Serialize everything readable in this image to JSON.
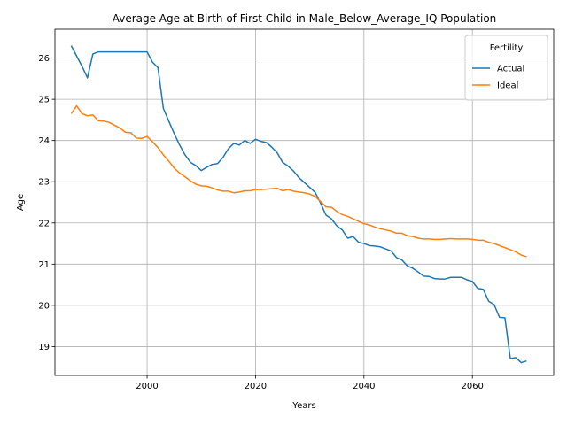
{
  "chart_data": {
    "type": "line",
    "title": "Average Age at Birth of First Child in Male_Below_Average_IQ Population",
    "xlabel": "Years",
    "ylabel": "Age",
    "xlim": [
      1983,
      2075
    ],
    "ylim": [
      18.3,
      26.7
    ],
    "xticks": [
      2000,
      2020,
      2040,
      2060
    ],
    "yticks": [
      19,
      20,
      21,
      22,
      23,
      24,
      25,
      26
    ],
    "grid": true,
    "legend": {
      "title": "Fertility",
      "placement": "top-right"
    },
    "x": [
      1986,
      1987,
      1988,
      1989,
      1990,
      1991,
      1992,
      1993,
      1994,
      1995,
      1996,
      1997,
      1998,
      1999,
      2000,
      2001,
      2002,
      2003,
      2004,
      2005,
      2006,
      2007,
      2008,
      2009,
      2010,
      2011,
      2012,
      2013,
      2014,
      2015,
      2016,
      2017,
      2018,
      2019,
      2020,
      2021,
      2022,
      2023,
      2024,
      2025,
      2026,
      2027,
      2028,
      2029,
      2030,
      2031,
      2032,
      2033,
      2034,
      2035,
      2036,
      2037,
      2038,
      2039,
      2040,
      2041,
      2042,
      2043,
      2044,
      2045,
      2046,
      2047,
      2048,
      2049,
      2050,
      2051,
      2052,
      2053,
      2054,
      2055,
      2056,
      2057,
      2058,
      2059,
      2060,
      2061,
      2062,
      2063,
      2064,
      2065,
      2066,
      2067,
      2068,
      2069,
      2070
    ],
    "series": [
      {
        "name": "Actual",
        "color": "#1f77b4",
        "values": [
          26.3,
          26.05,
          25.8,
          25.52,
          26.1,
          26.15,
          26.15,
          26.15,
          26.15,
          26.15,
          26.15,
          26.15,
          26.15,
          26.15,
          26.15,
          25.9,
          25.77,
          24.78,
          24.47,
          24.17,
          23.89,
          23.65,
          23.47,
          23.39,
          23.27,
          23.35,
          23.42,
          23.44,
          23.59,
          23.8,
          23.93,
          23.89,
          24.0,
          23.93,
          24.03,
          23.98,
          23.95,
          23.84,
          23.7,
          23.47,
          23.38,
          23.26,
          23.1,
          22.98,
          22.86,
          22.74,
          22.48,
          22.19,
          22.1,
          21.93,
          21.83,
          21.63,
          21.67,
          21.53,
          21.5,
          21.45,
          21.44,
          21.42,
          21.37,
          21.32,
          21.16,
          21.1,
          20.96,
          20.9,
          20.81,
          20.71,
          20.7,
          20.65,
          20.64,
          20.64,
          20.68,
          20.68,
          20.68,
          20.62,
          20.58,
          20.41,
          20.39,
          20.1,
          20.02,
          19.71,
          19.7,
          18.71,
          18.73,
          18.61,
          18.65
        ]
      },
      {
        "name": "Ideal",
        "color": "#ff7f0e",
        "values": [
          24.65,
          24.84,
          24.65,
          24.6,
          24.62,
          24.48,
          24.47,
          24.44,
          24.37,
          24.3,
          24.2,
          24.19,
          24.06,
          24.05,
          24.1,
          23.97,
          23.83,
          23.65,
          23.5,
          23.33,
          23.21,
          23.12,
          23.02,
          22.94,
          22.9,
          22.89,
          22.85,
          22.8,
          22.77,
          22.77,
          22.73,
          22.75,
          22.78,
          22.78,
          22.81,
          22.81,
          22.82,
          22.83,
          22.84,
          22.78,
          22.81,
          22.77,
          22.75,
          22.73,
          22.7,
          22.64,
          22.52,
          22.39,
          22.38,
          22.28,
          22.2,
          22.16,
          22.1,
          22.04,
          21.98,
          21.95,
          21.9,
          21.86,
          21.83,
          21.8,
          21.75,
          21.75,
          21.69,
          21.67,
          21.63,
          21.61,
          21.61,
          21.6,
          21.6,
          21.61,
          21.62,
          21.61,
          21.61,
          21.61,
          21.6,
          21.58,
          21.58,
          21.53,
          21.5,
          21.45,
          21.4,
          21.35,
          21.3,
          21.22,
          21.18
        ]
      }
    ]
  }
}
